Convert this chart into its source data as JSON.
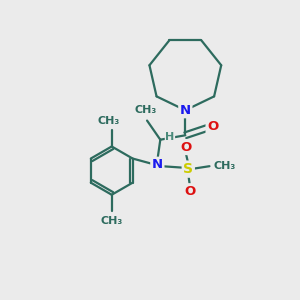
{
  "background_color": "#ebebeb",
  "bond_color": "#2d6b5e",
  "n_color": "#1a1aee",
  "o_color": "#dd1111",
  "s_color": "#cccc00",
  "h_color": "#4a8a7a",
  "line_width": 1.6,
  "font_size": 9.5,
  "fig_width": 3.0,
  "fig_height": 3.0,
  "dpi": 100,
  "xlim": [
    0,
    10
  ],
  "ylim": [
    0,
    10
  ]
}
